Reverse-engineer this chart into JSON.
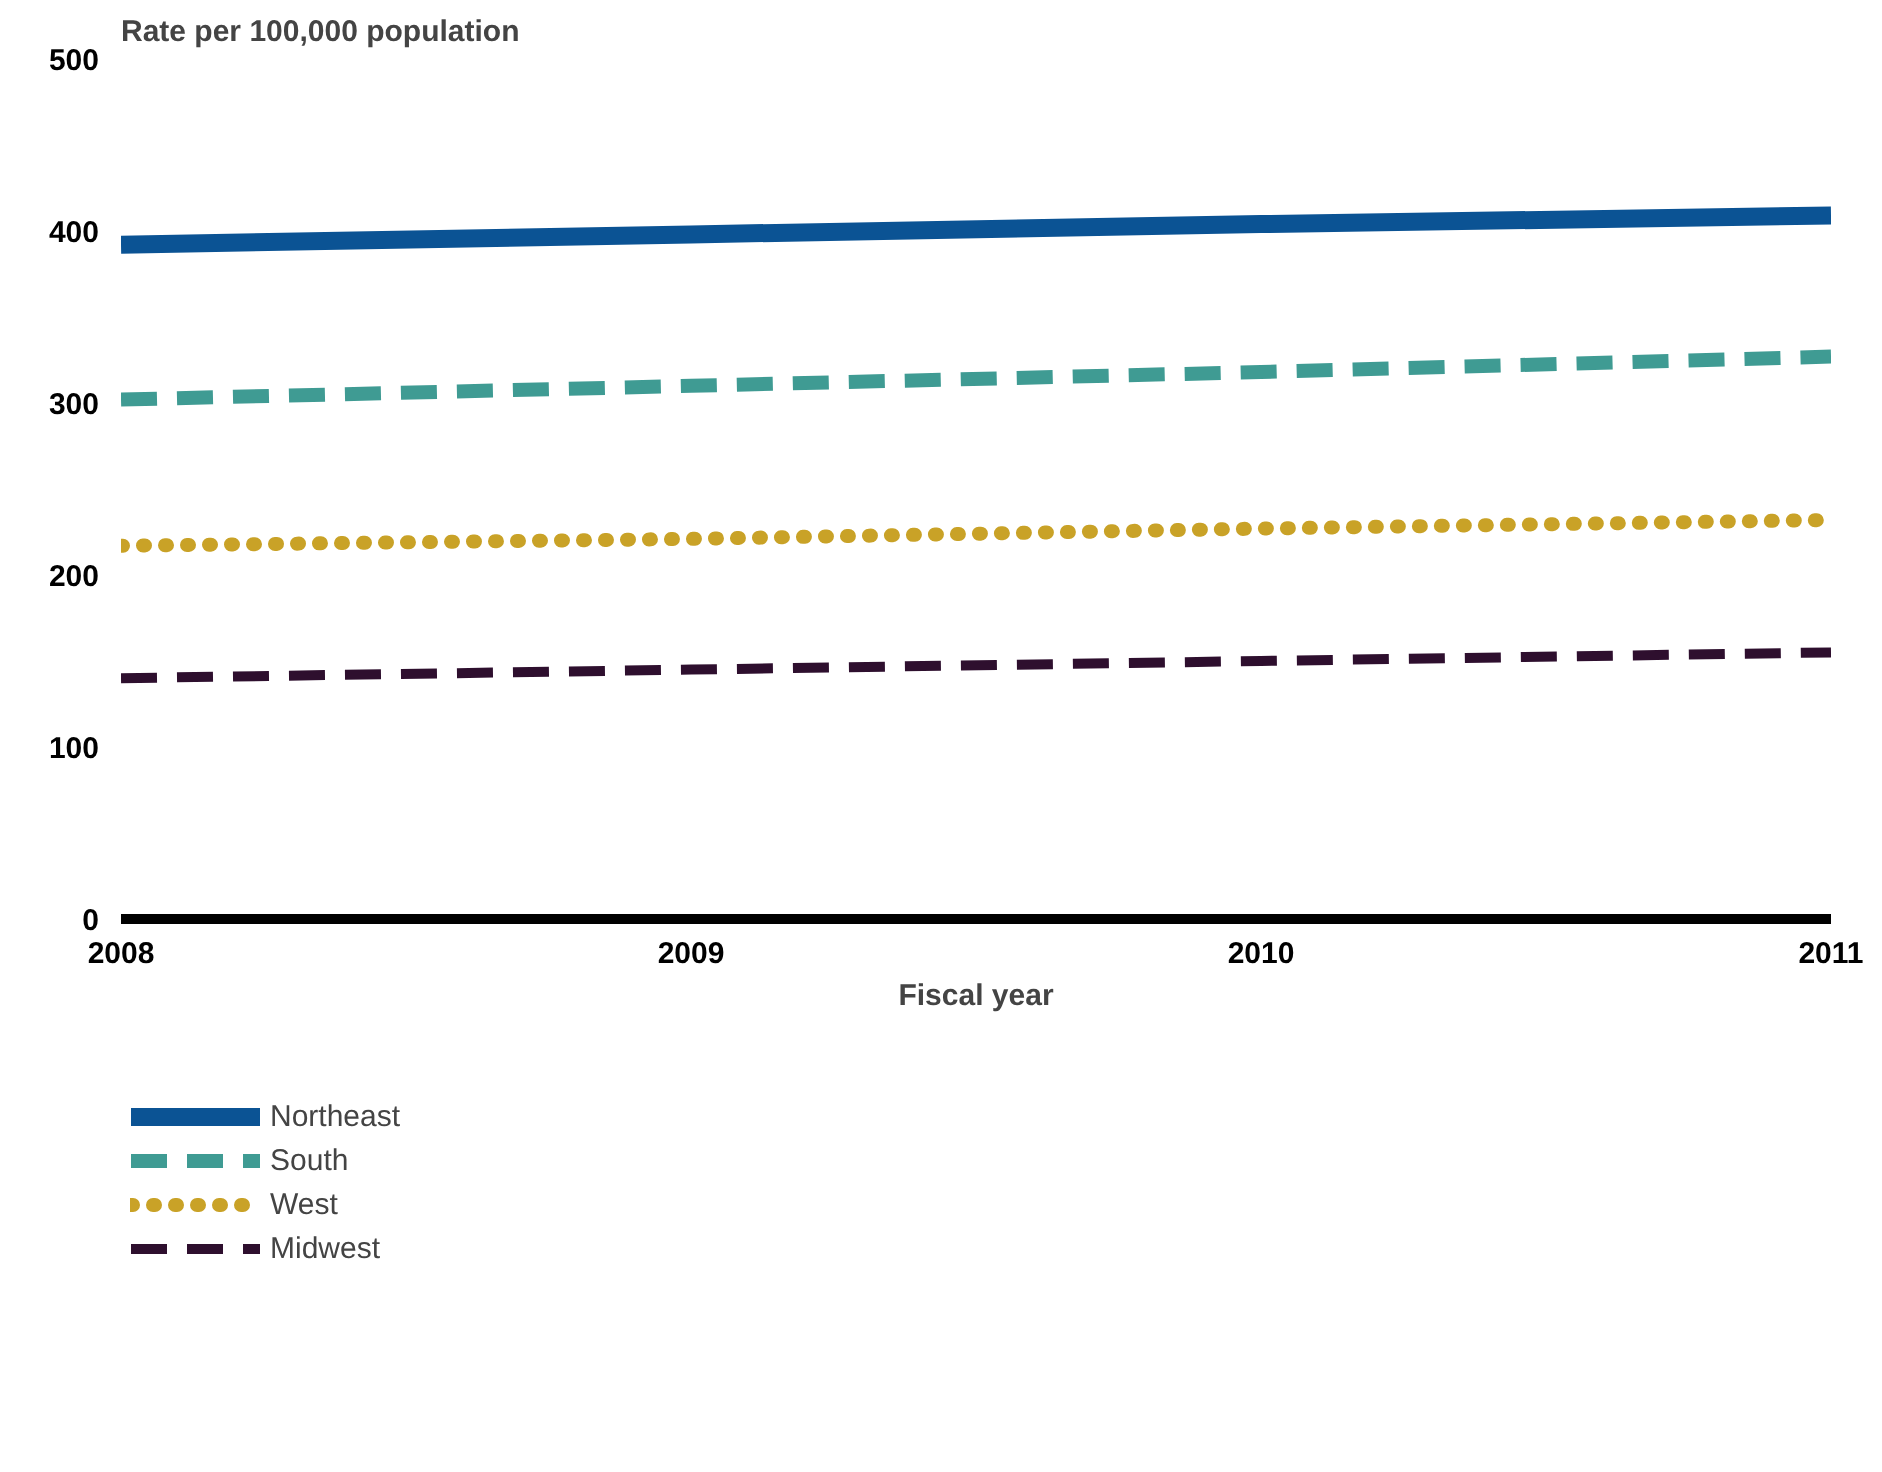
{
  "chart_data": {
    "type": "line",
    "ylabel": "Rate per 100,000 population",
    "xlabel": "Fiscal year",
    "x": [
      2008,
      2009,
      2010,
      2011
    ],
    "xlim": [
      2008,
      2011
    ],
    "xticks": [
      2008,
      2009,
      2010,
      2011
    ],
    "ylim": [
      0,
      500
    ],
    "yticks": [
      0,
      100,
      200,
      300,
      400,
      500
    ],
    "grid": false,
    "legend": "bottom",
    "series": [
      {
        "name": "Northeast",
        "color": "#0b5394",
        "line_style": "solid",
        "values": [
          392,
          398,
          404,
          409
        ]
      },
      {
        "name": "South",
        "color": "#3f9b93",
        "line_style": "dashed",
        "values": [
          302,
          310,
          318,
          327
        ]
      },
      {
        "name": "West",
        "color": "#c9a227",
        "line_style": "dotted",
        "values": [
          217,
          221,
          227,
          232
        ]
      },
      {
        "name": "Midwest",
        "color": "#2e0f2e",
        "line_style": "dashed",
        "values": [
          140,
          145,
          150,
          155
        ]
      }
    ]
  }
}
